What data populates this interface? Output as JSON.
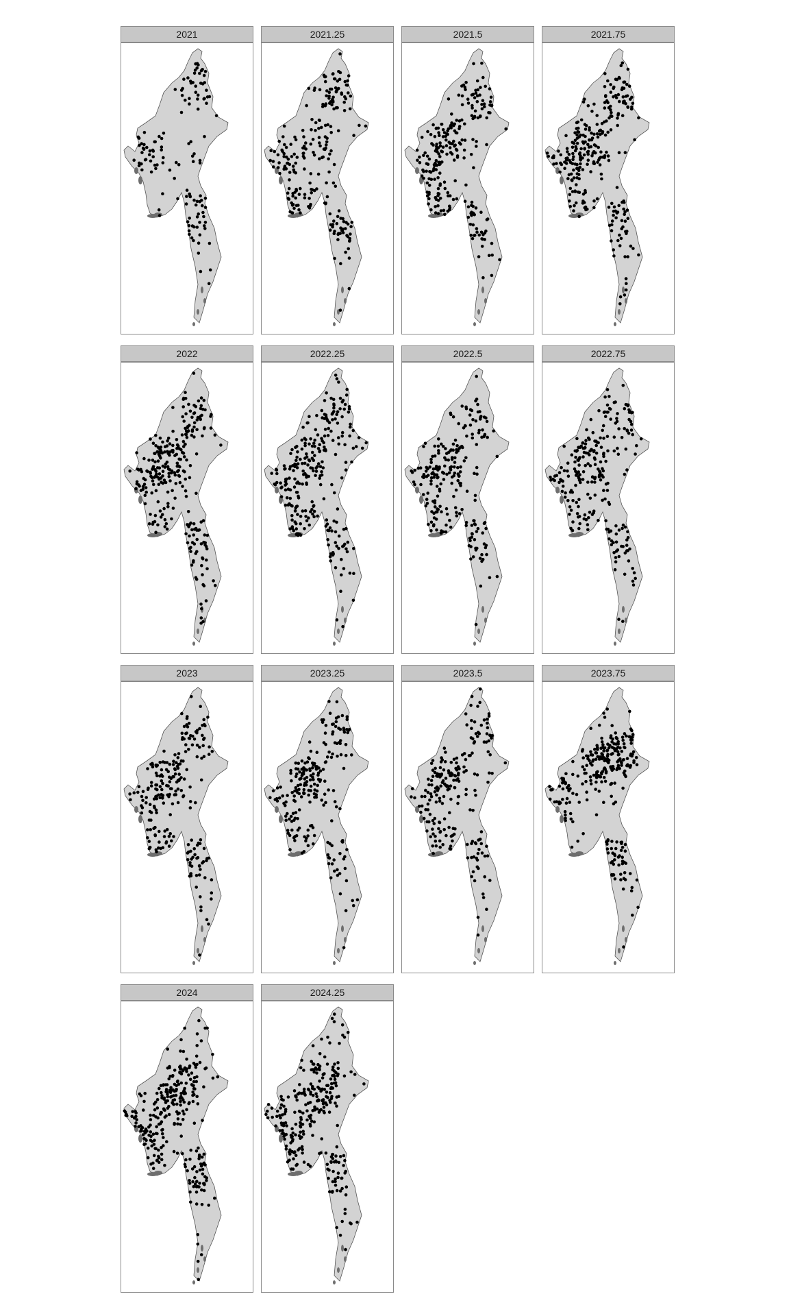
{
  "map": {
    "country_fill": "#d3d3d3",
    "country_stroke": "#555555",
    "island_fill": "#6e6e6e",
    "point_color": "#000000",
    "strip_fill": "#c7c7c7",
    "border_color": "#8a8a8a",
    "panels": [
      {
        "label": "2021",
        "density": 0.35,
        "focus": "sparse"
      },
      {
        "label": "2021.25",
        "density": 0.75,
        "focus": "broad"
      },
      {
        "label": "2021.5",
        "density": 0.8,
        "focus": "center"
      },
      {
        "label": "2021.75",
        "density": 0.95,
        "focus": "center"
      },
      {
        "label": "2022",
        "density": 0.95,
        "focus": "center"
      },
      {
        "label": "2022.25",
        "density": 0.9,
        "focus": "center"
      },
      {
        "label": "2022.5",
        "density": 0.75,
        "focus": "center"
      },
      {
        "label": "2022.75",
        "density": 0.8,
        "focus": "center"
      },
      {
        "label": "2023",
        "density": 0.75,
        "focus": "center"
      },
      {
        "label": "2023.25",
        "density": 0.7,
        "focus": "center"
      },
      {
        "label": "2023.5",
        "density": 0.7,
        "focus": "center"
      },
      {
        "label": "2023.75",
        "density": 0.95,
        "focus": "north"
      },
      {
        "label": "2024",
        "density": 1.0,
        "focus": "west"
      },
      {
        "label": "2024.25",
        "density": 0.95,
        "focus": "west"
      }
    ]
  }
}
